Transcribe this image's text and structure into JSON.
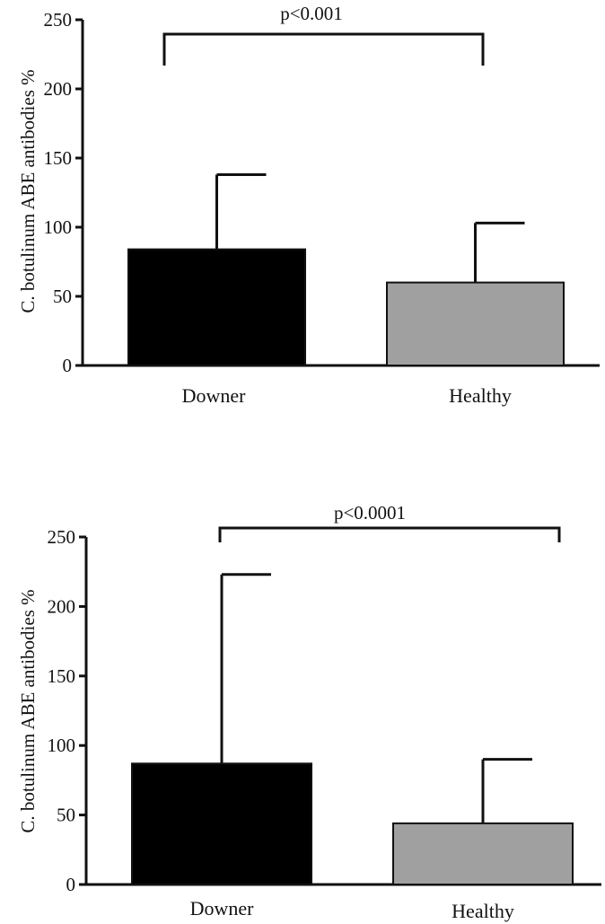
{
  "chart_data": [
    {
      "type": "bar",
      "categories": [
        "Downer",
        "Healthy"
      ],
      "values": [
        84,
        60
      ],
      "error_upper": [
        138,
        103
      ],
      "colors": [
        "#000000",
        "#a0a0a0"
      ],
      "ylabel": "C. botulinum ABE antibodies %",
      "ylim": [
        0,
        250
      ],
      "yticks": [
        "0",
        "50",
        "100",
        "150",
        "200",
        "250"
      ],
      "significance": "p<0.001"
    },
    {
      "type": "bar",
      "categories": [
        "Downer",
        "Healthy"
      ],
      "values": [
        87,
        44
      ],
      "error_upper": [
        223,
        90
      ],
      "colors": [
        "#000000",
        "#a0a0a0"
      ],
      "ylabel": "C. botulinum ABE antibodies %",
      "ylim": [
        0,
        250
      ],
      "yticks": [
        "0",
        "50",
        "100",
        "150",
        "200",
        "250"
      ],
      "significance": "p<0.0001"
    }
  ]
}
